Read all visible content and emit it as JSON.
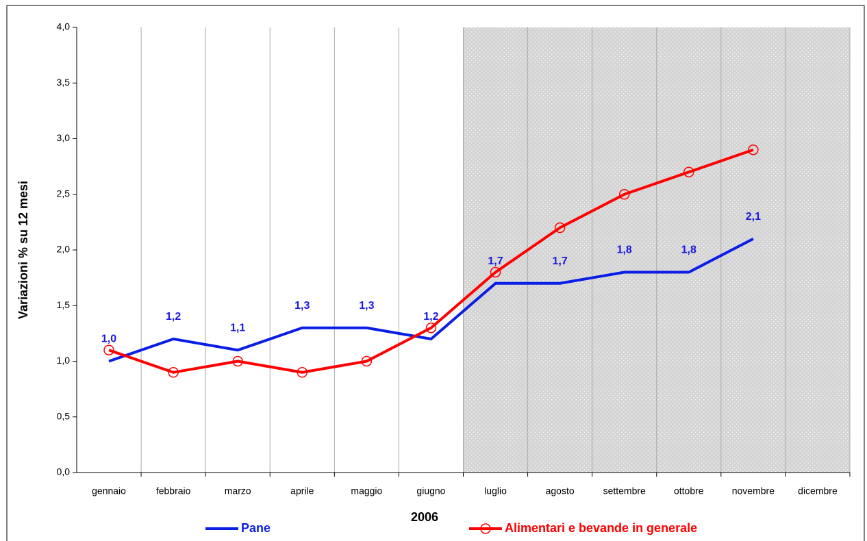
{
  "chart_data": {
    "type": "line",
    "y_label": "Variazioni % su 12 mesi",
    "x_label": "2006",
    "categories": [
      "gennaio",
      "febbraio",
      "marzo",
      "aprile",
      "maggio",
      "giugno",
      "luglio",
      "agosto",
      "settembre",
      "ottobre",
      "novembre",
      "dicembre"
    ],
    "series": [
      {
        "name": "Pane",
        "color": "#0a1ee6",
        "marker": "none",
        "values": [
          1.0,
          1.2,
          1.1,
          1.3,
          1.3,
          1.2,
          1.7,
          1.7,
          1.8,
          1.8,
          2.1,
          null
        ],
        "value_labels": [
          "1,0",
          "1,2",
          "1,1",
          "1,3",
          "1,3",
          "1,2",
          "1,7",
          "1,7",
          "1,8",
          "1,8",
          "2,1",
          null
        ]
      },
      {
        "name": "Alimentari e bevande in generale",
        "color": "#ff0000",
        "marker": "circle",
        "values": [
          1.1,
          0.9,
          1.0,
          0.9,
          1.0,
          1.3,
          1.8,
          2.2,
          2.5,
          2.7,
          2.9,
          null
        ]
      }
    ],
    "ylim": [
      0,
      4
    ],
    "yticks": [
      {
        "value": 0,
        "label": "0,0"
      },
      {
        "value": 0.5,
        "label": "0,5"
      },
      {
        "value": 1,
        "label": "1,0"
      },
      {
        "value": 1.5,
        "label": "1,5"
      },
      {
        "value": 2,
        "label": "2,0"
      },
      {
        "value": 2.5,
        "label": "2,5"
      },
      {
        "value": 3,
        "label": "3,0"
      },
      {
        "value": 3.5,
        "label": "3,5"
      },
      {
        "value": 4,
        "label": "4,0"
      }
    ],
    "grid": true,
    "shaded_from_index": 6,
    "legend": "bottom"
  }
}
